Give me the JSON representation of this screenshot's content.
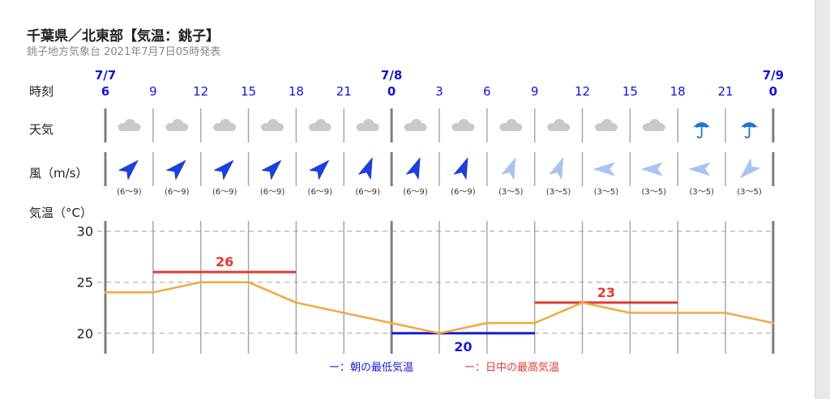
{
  "title": "千葉県／北東部【気温：銚子】",
  "subtitle": "銚子地方気象台 2021年7月7日05時発表",
  "row_labels": {
    "time": "時刻",
    "weather": "天気",
    "wind": "風（m/s）",
    "temp": "気温（°C）"
  },
  "legend": {
    "min": "ー：朝の最低気温",
    "max": "ー：日中の最高気温"
  },
  "colors": {
    "date_blue": "#1414d2",
    "min_line": "#1a1ad6",
    "max_line": "#e03b30",
    "temp_line": "#f0a93c",
    "wind_strong": "#1e3fd8",
    "wind_weak": "#a9c4ee",
    "cloud": "#c9c9c9",
    "umbrella": "#1a78d2"
  },
  "columns": [
    {
      "date": "7/7",
      "hour": "6",
      "weather": "cloud-icon",
      "wind_strength": "strong",
      "wind_dir": "SW",
      "wind_text": "(6〜9)"
    },
    {
      "date": "",
      "hour": "9",
      "weather": "cloud-icon",
      "wind_strength": "strong",
      "wind_dir": "SW",
      "wind_text": "(6〜9)"
    },
    {
      "date": "",
      "hour": "12",
      "weather": "cloud-icon",
      "wind_strength": "strong",
      "wind_dir": "SW",
      "wind_text": "(6〜9)"
    },
    {
      "date": "",
      "hour": "15",
      "weather": "cloud-icon",
      "wind_strength": "strong",
      "wind_dir": "SW",
      "wind_text": "(6〜9)"
    },
    {
      "date": "",
      "hour": "18",
      "weather": "cloud-icon",
      "wind_strength": "strong",
      "wind_dir": "SW",
      "wind_text": "(6〜9)"
    },
    {
      "date": "",
      "hour": "21",
      "weather": "cloud-icon",
      "wind_strength": "strong",
      "wind_dir": "SSW",
      "wind_text": "(6〜9)"
    },
    {
      "date": "7/8",
      "hour": "0",
      "weather": "cloud-icon",
      "wind_strength": "strong",
      "wind_dir": "SSW",
      "wind_text": "(6〜9)"
    },
    {
      "date": "",
      "hour": "3",
      "weather": "cloud-icon",
      "wind_strength": "strong",
      "wind_dir": "SSW",
      "wind_text": "(6〜9)"
    },
    {
      "date": "",
      "hour": "6",
      "weather": "cloud-icon",
      "wind_strength": "weak",
      "wind_dir": "SSW",
      "wind_text": "(3〜5)"
    },
    {
      "date": "",
      "hour": "9",
      "weather": "cloud-icon",
      "wind_strength": "weak",
      "wind_dir": "SSW",
      "wind_text": "(3〜5)"
    },
    {
      "date": "",
      "hour": "12",
      "weather": "cloud-icon",
      "wind_strength": "weak",
      "wind_dir": "E",
      "wind_text": "(3〜5)"
    },
    {
      "date": "",
      "hour": "15",
      "weather": "cloud-icon",
      "wind_strength": "weak",
      "wind_dir": "E",
      "wind_text": "(3〜5)"
    },
    {
      "date": "",
      "hour": "18",
      "weather": "umbrella-icon",
      "wind_strength": "weak",
      "wind_dir": "E",
      "wind_text": "(3〜5)"
    },
    {
      "date": "",
      "hour": "21",
      "weather": "umbrella-icon",
      "wind_strength": "weak",
      "wind_dir": "NE",
      "wind_text": "(3〜5)"
    },
    {
      "date": "7/9",
      "hour": "0",
      "weather": "",
      "wind_strength": "",
      "wind_dir": "",
      "wind_text": ""
    }
  ],
  "chart_data": {
    "type": "line",
    "title": "",
    "xlabel": "時刻",
    "ylabel": "気温（°C）",
    "x": [
      "7/7 6",
      "9",
      "12",
      "15",
      "18",
      "21",
      "7/8 0",
      "3",
      "6",
      "9",
      "12",
      "15",
      "18",
      "21",
      "7/9 0"
    ],
    "ylim": [
      18,
      31
    ],
    "yticks": [
      20,
      25,
      30
    ],
    "grid": true,
    "series": [
      {
        "values": [
          24,
          24,
          25,
          25,
          23,
          22,
          21,
          20,
          21,
          21,
          23,
          22,
          22,
          22,
          21
        ]
      }
    ],
    "annotations": [
      {
        "label": "26",
        "kind": "max",
        "value": 26,
        "from_index": 1,
        "to_index": 4
      },
      {
        "label": "20",
        "kind": "min",
        "value": 20,
        "from_index": 6,
        "to_index": 9
      },
      {
        "label": "23",
        "kind": "max",
        "value": 23,
        "from_index": 9,
        "to_index": 12
      }
    ],
    "legend": [
      "ー：朝の最低気温",
      "ー：日中の最高気温"
    ]
  }
}
